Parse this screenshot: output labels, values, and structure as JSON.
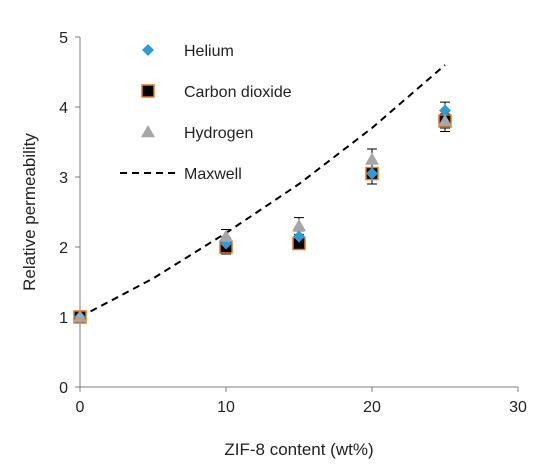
{
  "chart_data": {
    "type": "scatter",
    "xlabel": "ZIF-8 content (wt%)",
    "ylabel": "Relative permeability",
    "xlim": [
      0,
      30
    ],
    "ylim": [
      0,
      5
    ],
    "xticks": [
      "0",
      "10",
      "20",
      "30"
    ],
    "yticks": [
      "0",
      "1",
      "2",
      "3",
      "4",
      "5"
    ],
    "grid": false,
    "legend_position": "top-left",
    "series": [
      {
        "name": "Helium",
        "marker": "diamond",
        "color": "#2E9BD6",
        "x": [
          0,
          10,
          15,
          20,
          25
        ],
        "y": [
          1.0,
          2.05,
          2.15,
          3.05,
          3.95
        ],
        "err": [
          0,
          0.08,
          0.08,
          0.08,
          0.12
        ]
      },
      {
        "name": "Carbon dioxide",
        "marker": "square",
        "color": "#000000",
        "edge": "#E87722",
        "x": [
          0,
          10,
          15,
          20,
          25
        ],
        "y": [
          1.0,
          2.0,
          2.05,
          3.05,
          3.8
        ],
        "err": [
          0,
          0.1,
          0.08,
          0.15,
          0.15
        ]
      },
      {
        "name": "Hydrogen",
        "marker": "triangle",
        "color": "#A6A6A6",
        "x": [
          0,
          10,
          15,
          20,
          25
        ],
        "y": [
          1.0,
          2.15,
          2.3,
          3.25,
          3.8
        ],
        "err": [
          0,
          0.1,
          0.12,
          0.15,
          0.1
        ]
      },
      {
        "name": "Maxwell",
        "line": "dashed",
        "color": "#000000",
        "x": [
          0,
          5,
          10,
          15,
          20,
          25
        ],
        "y": [
          1.0,
          1.55,
          2.2,
          2.9,
          3.7,
          4.6
        ]
      }
    ]
  }
}
